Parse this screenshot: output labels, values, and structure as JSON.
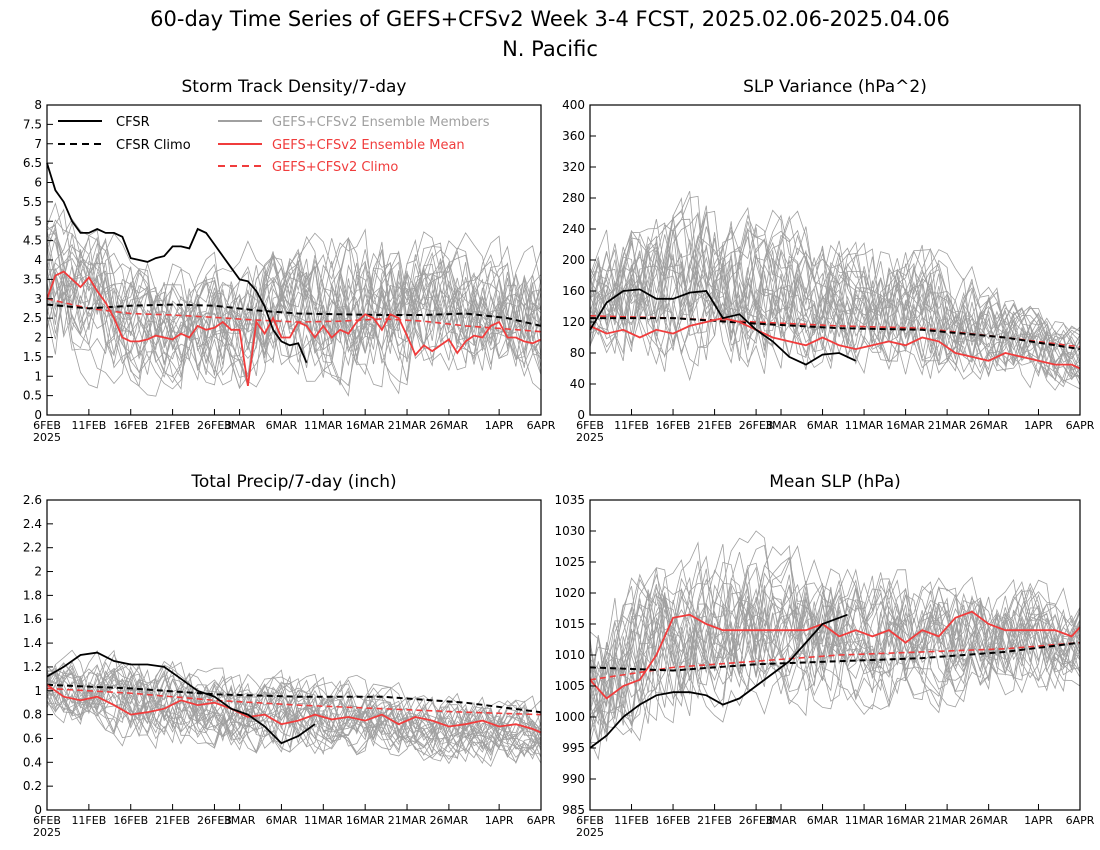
{
  "figure": {
    "title_line1": "60-day Time Series of GEFS+CFSv2 Week 3-4 FCST, 2025.02.06-2025.04.06",
    "title_line2": "N. Pacific"
  },
  "legend": {
    "cfsr": "CFSR",
    "cfsr_climo": "CFSR Climo",
    "members": "GEFS+CFSv2 Ensemble Members",
    "ens_mean": "GEFS+CFSv2 Ensemble Mean",
    "model_climo": "GEFS+CFSv2 Climo"
  },
  "colors": {
    "cfsr": "#000000",
    "members": "#a0a0a0",
    "ens_mean": "#f03c3c",
    "axis": "#000000"
  },
  "x_axis": {
    "days": 60,
    "ticks": [
      {
        "day": 0,
        "label": "6FEB"
      },
      {
        "day": 5,
        "label": "11FEB"
      },
      {
        "day": 10,
        "label": "16FEB"
      },
      {
        "day": 15,
        "label": "21FEB"
      },
      {
        "day": 20,
        "label": "26FEB"
      },
      {
        "day": 23,
        "label": "3MAR"
      },
      {
        "day": 28,
        "label": "6MAR"
      },
      {
        "day": 33,
        "label": "11MAR"
      },
      {
        "day": 38,
        "label": "16MAR"
      },
      {
        "day": 43,
        "label": "21MAR"
      },
      {
        "day": 48,
        "label": "26MAR"
      },
      {
        "day": 54,
        "label": "1APR"
      },
      {
        "day": 59,
        "label": "6APR"
      }
    ],
    "year_label": "2025"
  },
  "chart_data": [
    {
      "type": "line",
      "title": "Storm Track Density/7-day",
      "ylim": [
        0,
        8
      ],
      "yticks": [
        "0",
        "0.5",
        "1",
        "1.5",
        "2",
        "2.5",
        "3",
        "3.5",
        "4",
        "4.5",
        "5",
        "5.5",
        "6",
        "6.5",
        "7",
        "7.5",
        "8"
      ],
      "ytick_values": [
        0,
        0.5,
        1,
        1.5,
        2,
        2.5,
        3,
        3.5,
        4,
        4.5,
        5,
        5.5,
        6,
        6.5,
        7,
        7.5,
        8
      ],
      "legend": true,
      "cfsr": {
        "x": [
          0,
          1,
          2,
          3,
          4,
          5,
          6,
          7,
          8,
          9,
          10,
          11,
          12,
          13,
          14,
          15,
          16,
          17,
          18,
          19,
          20,
          21,
          22,
          23,
          24,
          25,
          26,
          27,
          28,
          29,
          30,
          31
        ],
        "y": [
          6.5,
          5.8,
          5.5,
          5.0,
          4.7,
          4.7,
          4.8,
          4.7,
          4.7,
          4.6,
          4.05,
          4.0,
          3.95,
          4.05,
          4.1,
          4.35,
          4.35,
          4.3,
          4.8,
          4.7,
          4.4,
          4.1,
          3.8,
          3.5,
          3.45,
          3.2,
          2.8,
          2.2,
          1.9,
          1.8,
          1.85,
          1.35
        ]
      },
      "cfsr_climo": {
        "x": [
          0,
          5,
          10,
          15,
          20,
          25,
          30,
          35,
          40,
          45,
          50,
          55,
          59
        ],
        "y": [
          2.85,
          2.75,
          2.82,
          2.85,
          2.82,
          2.7,
          2.62,
          2.6,
          2.58,
          2.58,
          2.62,
          2.5,
          2.3
        ]
      },
      "ens_mean": {
        "x": [
          0,
          1,
          2,
          3,
          4,
          5,
          6,
          7,
          8,
          9,
          10,
          11,
          12,
          13,
          14,
          15,
          16,
          17,
          18,
          19,
          20,
          21,
          22,
          23,
          24,
          25,
          26,
          27,
          28,
          29,
          30,
          31,
          32,
          33,
          34,
          35,
          36,
          37,
          38,
          39,
          40,
          41,
          42,
          43,
          44,
          45,
          46,
          47,
          48,
          49,
          50,
          51,
          52,
          53,
          54,
          55,
          56,
          57,
          58,
          59
        ],
        "y": [
          3.0,
          3.6,
          3.7,
          3.5,
          3.3,
          3.55,
          3.2,
          2.9,
          2.5,
          2.0,
          1.9,
          1.9,
          1.95,
          2.05,
          2.0,
          1.95,
          2.1,
          2.0,
          2.3,
          2.2,
          2.25,
          2.4,
          2.2,
          2.2,
          0.75,
          2.4,
          2.1,
          2.5,
          2.0,
          2.0,
          2.4,
          2.3,
          2.0,
          2.3,
          2.0,
          2.2,
          2.1,
          2.4,
          2.6,
          2.5,
          2.2,
          2.6,
          2.5,
          2.05,
          1.55,
          1.8,
          1.65,
          1.8,
          1.95,
          1.6,
          1.9,
          2.05,
          2.0,
          2.3,
          2.4,
          2.0,
          2.0,
          1.9,
          1.85,
          1.95
        ]
      },
      "model_climo": {
        "x": [
          0,
          5,
          10,
          15,
          20,
          25,
          30,
          35,
          40,
          45,
          50,
          55,
          59
        ],
        "y": [
          3.0,
          2.75,
          2.62,
          2.58,
          2.52,
          2.45,
          2.4,
          2.42,
          2.48,
          2.42,
          2.3,
          2.22,
          2.15
        ]
      },
      "members_envelope": {
        "x": [
          0,
          10,
          20,
          30,
          40,
          50,
          59
        ],
        "lo": [
          1.0,
          0.5,
          0.3,
          0.5,
          0.5,
          0.8,
          0.5
        ],
        "hi": [
          6.0,
          4.5,
          4.2,
          5.0,
          5.3,
          4.8,
          4.5
        ]
      }
    },
    {
      "type": "line",
      "title": "SLP Variance (hPa^2)",
      "ylim": [
        0,
        400
      ],
      "yticks": [
        "0",
        "40",
        "80",
        "120",
        "160",
        "200",
        "240",
        "280",
        "320",
        "360",
        "400"
      ],
      "ytick_values": [
        0,
        40,
        80,
        120,
        160,
        200,
        240,
        280,
        320,
        360,
        400
      ],
      "legend": false,
      "cfsr": {
        "x": [
          0,
          2,
          4,
          6,
          8,
          10,
          12,
          14,
          16,
          18,
          20,
          22,
          24,
          26,
          28,
          30,
          32
        ],
        "y": [
          110,
          145,
          160,
          162,
          150,
          150,
          158,
          160,
          125,
          130,
          110,
          95,
          75,
          65,
          78,
          80,
          70
        ]
      },
      "cfsr_climo": {
        "x": [
          0,
          10,
          20,
          30,
          40,
          50,
          59
        ],
        "y": [
          125,
          125,
          118,
          112,
          110,
          100,
          85
        ]
      },
      "ens_mean": {
        "x": [
          0,
          2,
          4,
          6,
          8,
          10,
          12,
          14,
          16,
          18,
          20,
          22,
          24,
          26,
          28,
          30,
          32,
          34,
          36,
          38,
          40,
          42,
          44,
          46,
          48,
          50,
          52,
          54,
          56,
          58,
          59
        ],
        "y": [
          115,
          105,
          110,
          100,
          110,
          105,
          115,
          120,
          125,
          120,
          110,
          100,
          95,
          90,
          100,
          90,
          85,
          90,
          95,
          90,
          100,
          95,
          80,
          75,
          70,
          80,
          75,
          70,
          65,
          65,
          60
        ]
      },
      "model_climo": {
        "x": [
          0,
          10,
          20,
          30,
          40,
          50,
          59
        ],
        "y": [
          128,
          125,
          120,
          115,
          112,
          100,
          88
        ]
      },
      "members_envelope": {
        "x": [
          0,
          10,
          20,
          30,
          40,
          50,
          59
        ],
        "lo": [
          50,
          40,
          30,
          40,
          30,
          30,
          20
        ],
        "hi": [
          230,
          300,
          280,
          250,
          240,
          170,
          120
        ]
      }
    },
    {
      "type": "line",
      "title": "Total Precip/7-day (inch)",
      "ylim": [
        0,
        2.6
      ],
      "yticks": [
        "0",
        "0.2",
        "0.4",
        "0.6",
        "0.8",
        "1",
        "1.2",
        "1.4",
        "1.6",
        "1.8",
        "2",
        "2.2",
        "2.4",
        "2.6"
      ],
      "ytick_values": [
        0,
        0.2,
        0.4,
        0.6,
        0.8,
        1,
        1.2,
        1.4,
        1.6,
        1.8,
        2,
        2.2,
        2.4,
        2.6
      ],
      "legend": false,
      "cfsr": {
        "x": [
          0,
          2,
          4,
          6,
          8,
          10,
          12,
          14,
          16,
          18,
          20,
          22,
          24,
          26,
          28,
          30,
          32
        ],
        "y": [
          1.12,
          1.2,
          1.3,
          1.32,
          1.25,
          1.22,
          1.22,
          1.2,
          1.1,
          1.0,
          0.95,
          0.85,
          0.8,
          0.7,
          0.56,
          0.62,
          0.72
        ]
      },
      "cfsr_climo": {
        "x": [
          0,
          10,
          20,
          30,
          40,
          50,
          59
        ],
        "y": [
          1.05,
          1.02,
          0.97,
          0.95,
          0.95,
          0.9,
          0.82
        ]
      },
      "ens_mean": {
        "x": [
          0,
          2,
          4,
          6,
          8,
          10,
          12,
          14,
          16,
          18,
          20,
          22,
          24,
          26,
          28,
          30,
          32,
          34,
          36,
          38,
          40,
          42,
          44,
          46,
          48,
          50,
          52,
          54,
          56,
          58,
          59
        ],
        "y": [
          1.05,
          0.95,
          0.92,
          0.95,
          0.88,
          0.8,
          0.82,
          0.85,
          0.92,
          0.88,
          0.9,
          0.85,
          0.78,
          0.8,
          0.72,
          0.75,
          0.8,
          0.76,
          0.78,
          0.75,
          0.8,
          0.72,
          0.78,
          0.75,
          0.7,
          0.72,
          0.75,
          0.7,
          0.72,
          0.68,
          0.65
        ]
      },
      "model_climo": {
        "x": [
          0,
          10,
          20,
          30,
          40,
          50,
          59
        ],
        "y": [
          1.02,
          0.98,
          0.92,
          0.88,
          0.85,
          0.82,
          0.8
        ]
      },
      "members_envelope": {
        "x": [
          0,
          10,
          20,
          30,
          40,
          50,
          59
        ],
        "lo": [
          0.7,
          0.5,
          0.45,
          0.4,
          0.4,
          0.35,
          0.3
        ],
        "hi": [
          1.35,
          1.4,
          1.25,
          1.2,
          1.1,
          1.0,
          0.95
        ]
      }
    },
    {
      "type": "line",
      "title": "Mean SLP (hPa)",
      "ylim": [
        985,
        1035
      ],
      "yticks": [
        "985",
        "990",
        "995",
        "1000",
        "1005",
        "1010",
        "1015",
        "1020",
        "1025",
        "1030",
        "1035"
      ],
      "ytick_values": [
        985,
        990,
        995,
        1000,
        1005,
        1010,
        1015,
        1020,
        1025,
        1030,
        1035
      ],
      "legend": false,
      "cfsr": {
        "x": [
          0,
          2,
          4,
          6,
          8,
          10,
          12,
          14,
          16,
          18,
          20,
          22,
          24,
          26,
          28,
          30,
          31
        ],
        "y": [
          995,
          997,
          1000,
          1002,
          1003.5,
          1004,
          1004,
          1003.5,
          1002,
          1003,
          1005,
          1007,
          1009,
          1012,
          1015,
          1016,
          1016.5
        ]
      },
      "cfsr_climo": {
        "x": [
          0,
          10,
          20,
          30,
          40,
          50,
          59
        ],
        "y": [
          1008,
          1007.5,
          1008.5,
          1009,
          1009.5,
          1010.5,
          1012
        ]
      },
      "ens_mean": {
        "x": [
          0,
          2,
          4,
          6,
          8,
          10,
          12,
          14,
          16,
          18,
          20,
          22,
          24,
          26,
          28,
          30,
          32,
          34,
          36,
          38,
          40,
          42,
          44,
          46,
          48,
          50,
          52,
          54,
          56,
          58,
          59
        ],
        "y": [
          1006,
          1003,
          1005,
          1006,
          1010,
          1016,
          1016.5,
          1015,
          1014,
          1014,
          1014,
          1014,
          1014,
          1014,
          1015,
          1013,
          1014,
          1013,
          1014,
          1012,
          1014,
          1013,
          1016,
          1017,
          1015,
          1014,
          1014,
          1014,
          1014,
          1013,
          1014.5
        ]
      },
      "model_climo": {
        "x": [
          0,
          10,
          20,
          30,
          40,
          50,
          59
        ],
        "y": [
          1006,
          1008,
          1009,
          1010,
          1010.5,
          1011,
          1012
        ]
      },
      "members_envelope": {
        "x": [
          0,
          10,
          20,
          30,
          40,
          50,
          59
        ],
        "lo": [
          988,
          998,
          1000,
          1000,
          1000,
          1002,
          1004
        ],
        "hi": [
          1022,
          1028,
          1030,
          1026,
          1025,
          1024,
          1022
        ]
      }
    }
  ]
}
